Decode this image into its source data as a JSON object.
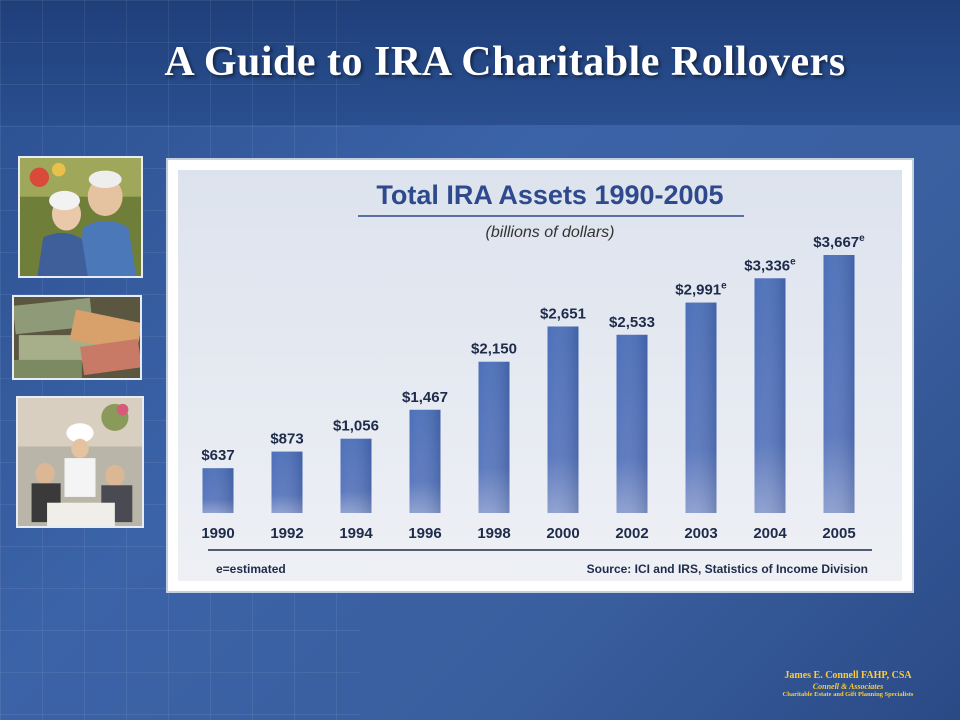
{
  "slide": {
    "title": "A Guide to IRA Charitable Rollovers"
  },
  "photos": [
    {
      "name": "elderly-couple-photo"
    },
    {
      "name": "money-photo"
    },
    {
      "name": "dining-group-photo"
    }
  ],
  "footer": {
    "name": "James E. Connell FAHP, CSA",
    "company": "Connell & Associates",
    "tagline": "Charitable Estate and Gift Planning Specialists"
  },
  "colors": {
    "background": "#3b63a8",
    "title": "#ffffff",
    "bar": "#4f6fb6",
    "chart_title": "#2f4a8c",
    "footer_text": "#ffcc33"
  },
  "chart_data": {
    "type": "bar",
    "title": "Total IRA Assets 1990-2005",
    "subtitle": "(billions of dollars)",
    "categories": [
      "1990",
      "1992",
      "1994",
      "1996",
      "1998",
      "2000",
      "2002",
      "2003",
      "2004",
      "2005"
    ],
    "values": [
      637,
      873,
      1056,
      1467,
      2150,
      2651,
      2533,
      2991,
      3336,
      3667
    ],
    "value_labels": [
      "$637",
      "$873",
      "$1,056",
      "$1,467",
      "$2,150",
      "$2,651",
      "$2,533",
      "$2,991",
      "$3,336",
      "$3,667"
    ],
    "estimated": [
      false,
      false,
      false,
      false,
      false,
      false,
      false,
      true,
      true,
      true
    ],
    "estimated_mark": "e",
    "ylim": [
      0,
      3667
    ],
    "footnote": "e=estimated",
    "source": "Source: ICI and IRS, Statistics of Income Division",
    "grid": false,
    "legend": "none"
  }
}
